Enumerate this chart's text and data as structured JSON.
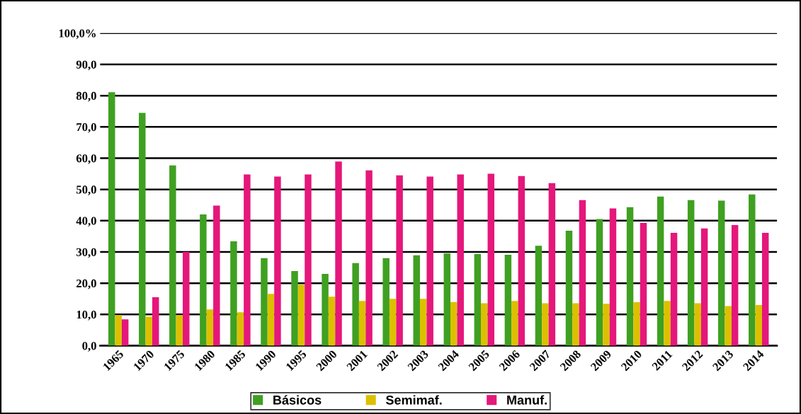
{
  "chart_data": {
    "type": "bar",
    "categories": [
      "1965",
      "1970",
      "1975",
      "1980",
      "1985",
      "1990",
      "1995",
      "2000",
      "2001",
      "2002",
      "2003",
      "2004",
      "2005",
      "2006",
      "2007",
      "2008",
      "2009",
      "2010",
      "2011",
      "2012",
      "2013",
      "2014"
    ],
    "series": [
      {
        "name": "Básicos",
        "color": "#3fa021",
        "values": [
          81.1,
          74.5,
          57.7,
          42.0,
          33.4,
          28.0,
          23.9,
          23.0,
          26.4,
          28.0,
          28.9,
          29.5,
          29.3,
          29.1,
          32.0,
          36.8,
          40.5,
          44.3,
          47.7,
          46.6,
          46.4,
          48.4
        ]
      },
      {
        "name": "Semimaf.",
        "color": "#dcc000",
        "values": [
          9.8,
          9.3,
          9.8,
          11.6,
          10.7,
          16.6,
          19.5,
          15.7,
          14.3,
          15.0,
          15.0,
          14.0,
          13.6,
          14.3,
          13.6,
          13.6,
          13.4,
          13.9,
          14.3,
          13.6,
          12.7,
          13.0
        ]
      },
      {
        "name": "Manuf.",
        "color": "#e5177b",
        "values": [
          8.4,
          15.5,
          30.0,
          44.8,
          54.8,
          54.1,
          54.8,
          58.9,
          56.1,
          54.5,
          54.1,
          54.8,
          55.0,
          54.3,
          52.0,
          46.6,
          43.9,
          39.3,
          36.1,
          37.5,
          38.6,
          36.1
        ]
      }
    ],
    "ylim": [
      0,
      100
    ],
    "yticks": [
      {
        "value": 0,
        "label": "0,0"
      },
      {
        "value": 10,
        "label": "10,0"
      },
      {
        "value": 20,
        "label": "20,0"
      },
      {
        "value": 30,
        "label": "30,0"
      },
      {
        "value": 40,
        "label": "40,0"
      },
      {
        "value": 50,
        "label": "50,0"
      },
      {
        "value": 60,
        "label": "60,0"
      },
      {
        "value": 70,
        "label": "70,0"
      },
      {
        "value": 80,
        "label": "80,0"
      },
      {
        "value": 90,
        "label": "90,0"
      },
      {
        "value": 100,
        "label": "100,0%"
      }
    ],
    "grid": "y",
    "legend": "bottom"
  }
}
